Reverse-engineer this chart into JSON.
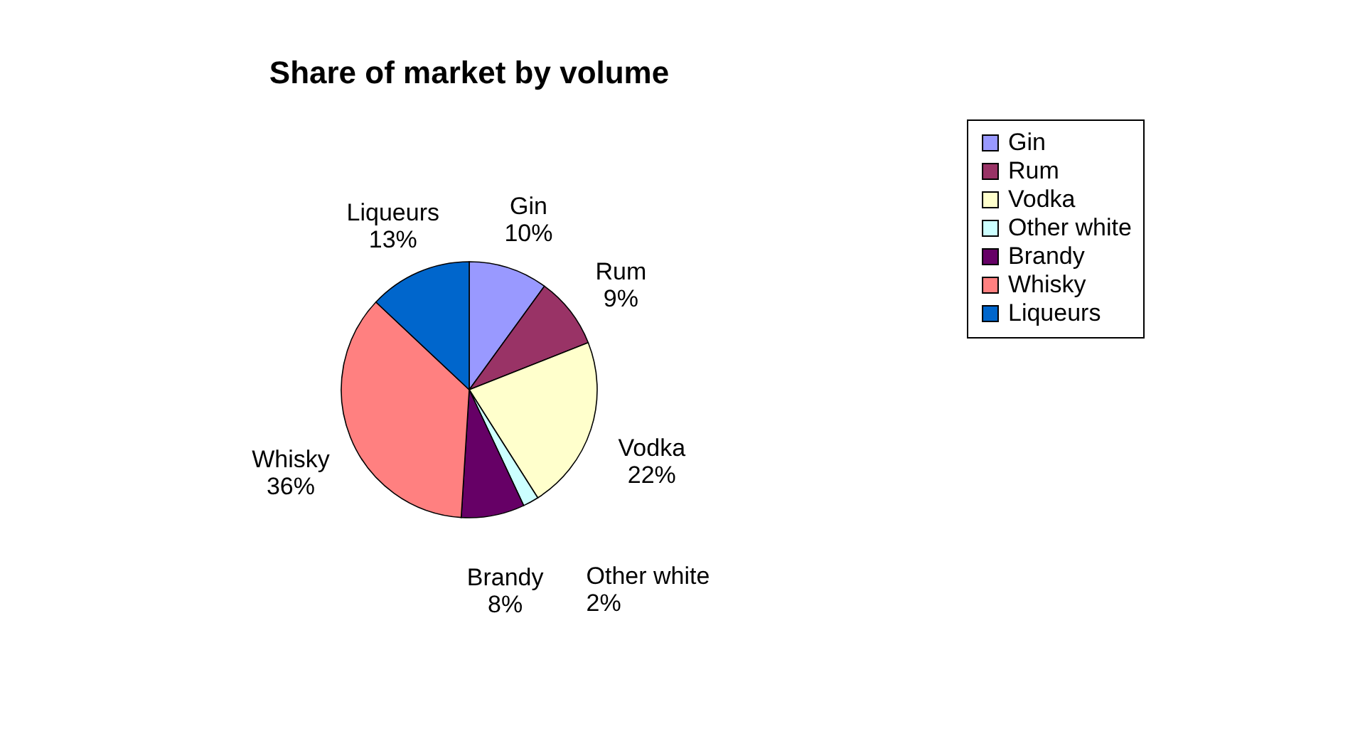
{
  "chart_data": {
    "type": "pie",
    "title": "Share of market by volume",
    "categories": [
      "Gin",
      "Rum",
      "Vodka",
      "Other white",
      "Brandy",
      "Whisky",
      "Liqueurs"
    ],
    "values": [
      10,
      9,
      22,
      2,
      8,
      36,
      13
    ],
    "value_labels": [
      "10%",
      "9%",
      "22%",
      "2%",
      "8%",
      "36%",
      "13%"
    ],
    "colors": [
      "#9999ff",
      "#993366",
      "#ffffcc",
      "#ccffff",
      "#660066",
      "#ff8080",
      "#0066cc"
    ],
    "legend": "right"
  }
}
